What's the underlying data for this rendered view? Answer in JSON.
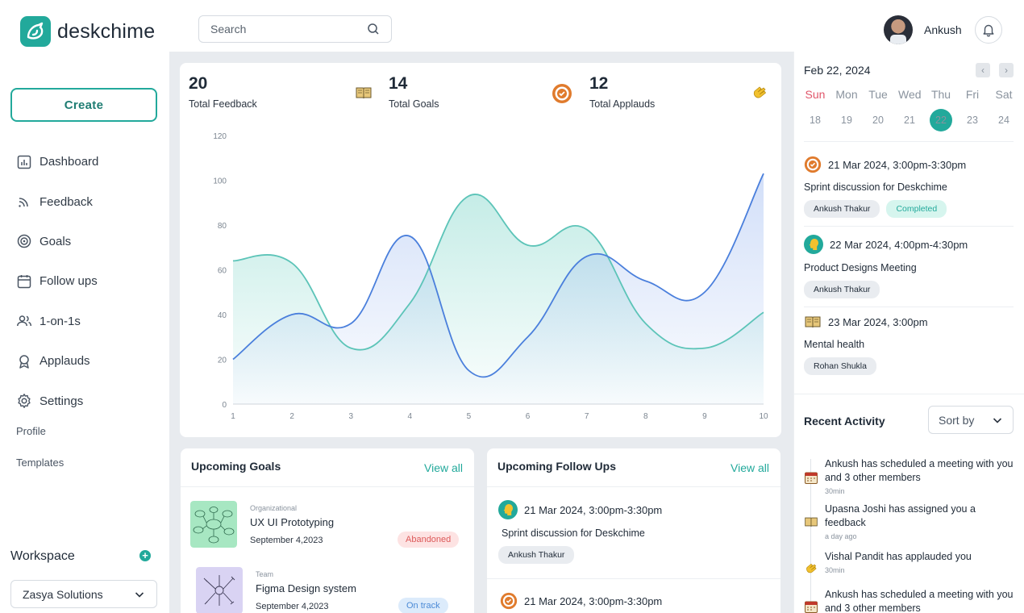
{
  "app": {
    "name": "deskchime"
  },
  "sidebar": {
    "create_label": "Create",
    "items": [
      {
        "label": "Dashboard",
        "icon": "dashboard-icon"
      },
      {
        "label": "Feedback",
        "icon": "feedback-icon"
      },
      {
        "label": "Goals",
        "icon": "goals-icon"
      },
      {
        "label": "Follow ups",
        "icon": "calendar-icon"
      },
      {
        "label": "1-on-1s",
        "icon": "users-icon"
      },
      {
        "label": "Applauds",
        "icon": "award-icon"
      },
      {
        "label": "Settings",
        "icon": "gear-icon"
      }
    ],
    "profile_label": "Profile",
    "templates_label": "Templates",
    "workspace_title": "Workspace",
    "workspace_value": "Zasya Solutions"
  },
  "header": {
    "search_placeholder": "Search",
    "user_name": "Ankush"
  },
  "stats": [
    {
      "value": "20",
      "label": "Total Feedback",
      "icon": "book-icon"
    },
    {
      "value": "14",
      "label": "Total Goals",
      "icon": "target-icon"
    },
    {
      "value": "12",
      "label": "Total Applauds",
      "icon": "clap-icon"
    }
  ],
  "chart_data": {
    "type": "line",
    "x": [
      1,
      2,
      3,
      4,
      5,
      6,
      7,
      8,
      9,
      10
    ],
    "xlim": [
      1,
      10
    ],
    "ylim": [
      0,
      120
    ],
    "yticks": [
      0,
      20,
      40,
      60,
      80,
      100,
      120
    ],
    "xticks": [
      1,
      2,
      3,
      4,
      5,
      6,
      7,
      8,
      9,
      10
    ],
    "series": [
      {
        "color": "#4a7fdc",
        "values": [
          20,
          40,
          36,
          75,
          15,
          30,
          66,
          55,
          50,
          103
        ]
      },
      {
        "color": "#5cc4b8",
        "values": [
          64,
          63,
          25,
          45,
          93,
          71,
          78,
          36,
          25,
          41
        ]
      }
    ],
    "grid": false
  },
  "goals": {
    "title": "Upcoming Goals",
    "view_all": "View all",
    "items": [
      {
        "type": "Organizational",
        "name": "UX UI Prototyping",
        "date": "September 4,2023",
        "status": "Abandoned"
      },
      {
        "type": "Team",
        "name": "Figma Design system",
        "date": "September 4,2023",
        "status": "On track"
      }
    ]
  },
  "followups": {
    "title": "Upcoming Follow Ups",
    "view_all": "View all",
    "items": [
      {
        "datetime": "21 Mar 2024, 3:00pm-3:30pm",
        "title": "Sprint discussion for Deskchime",
        "person": "Ankush Thakur"
      },
      {
        "datetime": "21 Mar 2024, 3:00pm-3:30pm"
      }
    ]
  },
  "calendar": {
    "current": "Feb 22, 2024",
    "weekdays": [
      "Sun",
      "Mon",
      "Tue",
      "Wed",
      "Thu",
      "Fri",
      "Sat"
    ],
    "days": [
      "18",
      "19",
      "20",
      "21",
      "22",
      "23",
      "24"
    ],
    "today": "22"
  },
  "events": [
    {
      "datetime": "21 Mar 2024, 3:00pm-3:30pm",
      "title": "Sprint discussion for Deskchime",
      "chips": [
        "Ankush Thakur"
      ],
      "status": "Completed",
      "icon": "target-icon"
    },
    {
      "datetime": "22 Mar 2024, 4:00pm-4:30pm",
      "title": "Product Designs Meeting",
      "chips": [
        "Ankush Thakur"
      ],
      "icon": "head-icon"
    },
    {
      "datetime": "23 Mar 2024, 3:00pm",
      "title": "Mental health",
      "chips": [
        "Rohan Shukla"
      ],
      "icon": "book-icon"
    }
  ],
  "recent": {
    "title": "Recent Activity",
    "sort_label": "Sort by",
    "items": [
      {
        "text": "Ankush has scheduled a meeting with you and 3 other members",
        "time": "30min",
        "icon": "calendar-icon"
      },
      {
        "text": "Upasna Joshi has assigned you a feedback",
        "time": "a day ago",
        "icon": "book-icon"
      },
      {
        "text": "Vishal Pandit has applauded you",
        "time": "30min",
        "icon": "clap-icon"
      },
      {
        "text": "Ankush has scheduled a meeting with you and 3 other members",
        "icon": "calendar-icon"
      }
    ]
  },
  "colors": {
    "accent": "#22a99b",
    "blue_line": "#4a7fdc",
    "teal_line": "#5cc4b8"
  }
}
